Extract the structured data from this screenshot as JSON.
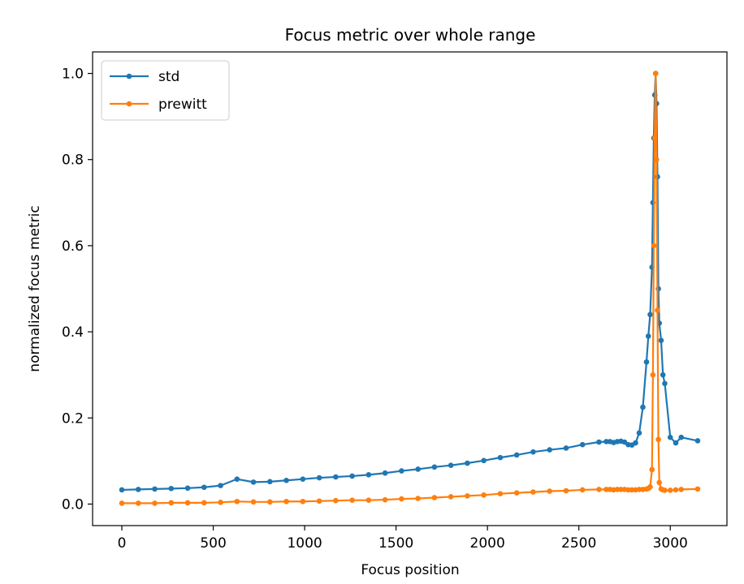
{
  "chart_data": {
    "type": "line",
    "title": "Focus metric over whole range",
    "xlabel": "Focus position",
    "ylabel": "normalized focus metric",
    "xlim": [
      -160,
      3310
    ],
    "ylim": [
      -0.05,
      1.05
    ],
    "xticks": [
      0,
      500,
      1000,
      1500,
      2000,
      2500,
      3000
    ],
    "yticks": [
      0.0,
      0.2,
      0.4,
      0.6,
      0.8,
      1.0
    ],
    "xtick_labels": [
      "0",
      "500",
      "1000",
      "1500",
      "2000",
      "2500",
      "3000"
    ],
    "ytick_labels": [
      "0.0",
      "0.2",
      "0.4",
      "0.6",
      "0.8",
      "1.0"
    ],
    "grid": false,
    "legend_position": "top-left",
    "series": [
      {
        "name": "std",
        "color": "#1f77b4",
        "x": [
          0,
          90,
          180,
          270,
          360,
          450,
          540,
          630,
          720,
          810,
          900,
          990,
          1080,
          1170,
          1260,
          1350,
          1440,
          1530,
          1620,
          1710,
          1800,
          1890,
          1980,
          2070,
          2160,
          2250,
          2340,
          2430,
          2520,
          2610,
          2650,
          2670,
          2690,
          2710,
          2730,
          2750,
          2770,
          2790,
          2810,
          2830,
          2850,
          2870,
          2880,
          2890,
          2900,
          2905,
          2910,
          2915,
          2920,
          2925,
          2930,
          2935,
          2940,
          2950,
          2960,
          2970,
          3000,
          3030,
          3060,
          3150
        ],
        "y": [
          0.033,
          0.034,
          0.035,
          0.036,
          0.037,
          0.039,
          0.043,
          0.058,
          0.051,
          0.052,
          0.055,
          0.058,
          0.061,
          0.063,
          0.065,
          0.068,
          0.072,
          0.077,
          0.081,
          0.086,
          0.09,
          0.095,
          0.101,
          0.108,
          0.114,
          0.121,
          0.126,
          0.13,
          0.138,
          0.144,
          0.145,
          0.145,
          0.143,
          0.145,
          0.146,
          0.144,
          0.138,
          0.137,
          0.142,
          0.165,
          0.225,
          0.33,
          0.39,
          0.44,
          0.55,
          0.7,
          0.85,
          0.95,
          1.0,
          0.93,
          0.76,
          0.5,
          0.42,
          0.38,
          0.3,
          0.28,
          0.155,
          0.142,
          0.155,
          0.147
        ]
      },
      {
        "name": "prewitt",
        "color": "#ff7f0e",
        "x": [
          0,
          90,
          180,
          270,
          360,
          450,
          540,
          630,
          720,
          810,
          900,
          990,
          1080,
          1170,
          1260,
          1350,
          1440,
          1530,
          1620,
          1710,
          1800,
          1890,
          1980,
          2070,
          2160,
          2250,
          2340,
          2430,
          2520,
          2610,
          2650,
          2670,
          2690,
          2710,
          2730,
          2750,
          2770,
          2790,
          2810,
          2830,
          2850,
          2870,
          2880,
          2890,
          2900,
          2905,
          2910,
          2915,
          2920,
          2925,
          2930,
          2935,
          2940,
          2950,
          2960,
          2970,
          3000,
          3030,
          3060,
          3150
        ],
        "y": [
          0.002,
          0.002,
          0.002,
          0.003,
          0.003,
          0.003,
          0.004,
          0.006,
          0.005,
          0.005,
          0.006,
          0.006,
          0.007,
          0.008,
          0.009,
          0.009,
          0.01,
          0.012,
          0.013,
          0.015,
          0.017,
          0.019,
          0.021,
          0.024,
          0.026,
          0.028,
          0.03,
          0.031,
          0.033,
          0.034,
          0.034,
          0.034,
          0.033,
          0.034,
          0.034,
          0.034,
          0.033,
          0.033,
          0.033,
          0.034,
          0.034,
          0.035,
          0.036,
          0.04,
          0.08,
          0.3,
          0.6,
          0.85,
          1.0,
          0.8,
          0.45,
          0.15,
          0.05,
          0.035,
          0.033,
          0.032,
          0.032,
          0.033,
          0.034,
          0.035
        ]
      }
    ]
  }
}
